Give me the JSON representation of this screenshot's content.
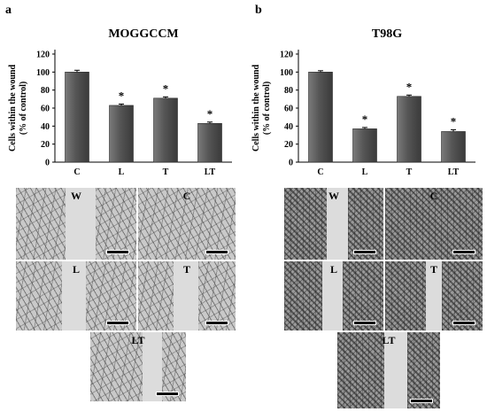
{
  "panels": {
    "a": {
      "letter": "a",
      "chart_data": {
        "type": "bar",
        "title": "MOGGCCM",
        "ylabel": "Cells within the wound (% of control)",
        "ylabel_line1": "Cells within the wound",
        "ylabel_line2": "(% of control)",
        "categories": [
          "C",
          "L",
          "T",
          "LT"
        ],
        "values": [
          100,
          63,
          71,
          43
        ],
        "errors": [
          2,
          1.5,
          1.5,
          1.5
        ],
        "significance": [
          "",
          "*",
          "*",
          "*"
        ],
        "ylim": [
          0,
          120
        ],
        "yticks": [
          "0",
          "20",
          "40",
          "60",
          "80",
          "100",
          "120"
        ],
        "grid": false,
        "color": "#555555"
      },
      "images": [
        {
          "label": "W",
          "type": "wound",
          "density": "sparse"
        },
        {
          "label": "C",
          "type": "full",
          "density": "sparse"
        },
        {
          "label": "L",
          "type": "wound",
          "density": "sparse"
        },
        {
          "label": "T",
          "type": "wound",
          "density": "sparse"
        },
        {
          "label": "LT",
          "type": "wound",
          "density": "sparse"
        }
      ]
    },
    "b": {
      "letter": "b",
      "chart_data": {
        "type": "bar",
        "title": "T98G",
        "ylabel": "Cells within the wound (% of control)",
        "ylabel_line1": "Cells within the wound",
        "ylabel_line2": "(% of control)",
        "categories": [
          "C",
          "L",
          "T",
          "LT"
        ],
        "values": [
          100,
          37,
          73,
          34
        ],
        "errors": [
          1.5,
          1.5,
          1.5,
          2
        ],
        "significance": [
          "",
          "*",
          "*",
          "*"
        ],
        "ylim": [
          0,
          120
        ],
        "yticks": [
          "0",
          "20",
          "40",
          "60",
          "80",
          "100",
          "120"
        ],
        "grid": false,
        "color": "#555555"
      },
      "images": [
        {
          "label": "W",
          "type": "wound",
          "density": "dense"
        },
        {
          "label": "C",
          "type": "full",
          "density": "dense"
        },
        {
          "label": "L",
          "type": "wound",
          "density": "dense"
        },
        {
          "label": "T",
          "type": "wound",
          "density": "dense"
        },
        {
          "label": "LT",
          "type": "wound",
          "density": "dense"
        }
      ]
    }
  }
}
